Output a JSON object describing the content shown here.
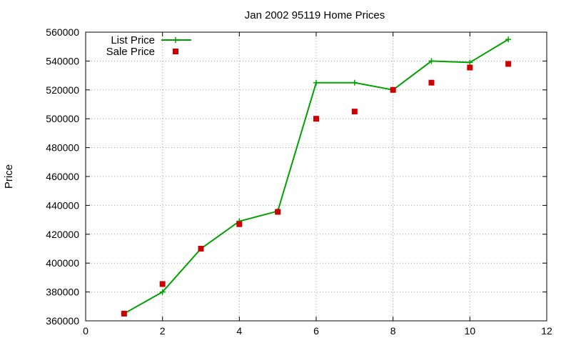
{
  "chart_data": {
    "type": "line",
    "title": "Jan 2002 95119 Home Prices",
    "xlabel": "",
    "ylabel": "Price",
    "xlim": [
      0,
      12
    ],
    "ylim": [
      360000,
      560000
    ],
    "xticks": [
      0,
      2,
      4,
      6,
      8,
      10,
      12
    ],
    "yticks": [
      360000,
      380000,
      400000,
      420000,
      440000,
      460000,
      480000,
      500000,
      520000,
      540000,
      560000
    ],
    "grid": true,
    "legend_position": "top-left",
    "x": [
      1,
      2,
      3,
      4,
      5,
      6,
      7,
      8,
      9,
      10,
      11
    ],
    "series": [
      {
        "name": "List Price",
        "style": "lines+points",
        "marker": "plus",
        "color": "#00a000",
        "values": [
          365000,
          380000,
          410000,
          429000,
          436000,
          525000,
          525000,
          520000,
          540000,
          539000,
          555000
        ]
      },
      {
        "name": "Sale Price",
        "style": "points",
        "marker": "square",
        "color": "#cc0000",
        "values": [
          365000,
          385500,
          410000,
          427000,
          435500,
          500000,
          505000,
          520000,
          525000,
          535500,
          538000
        ]
      }
    ]
  }
}
